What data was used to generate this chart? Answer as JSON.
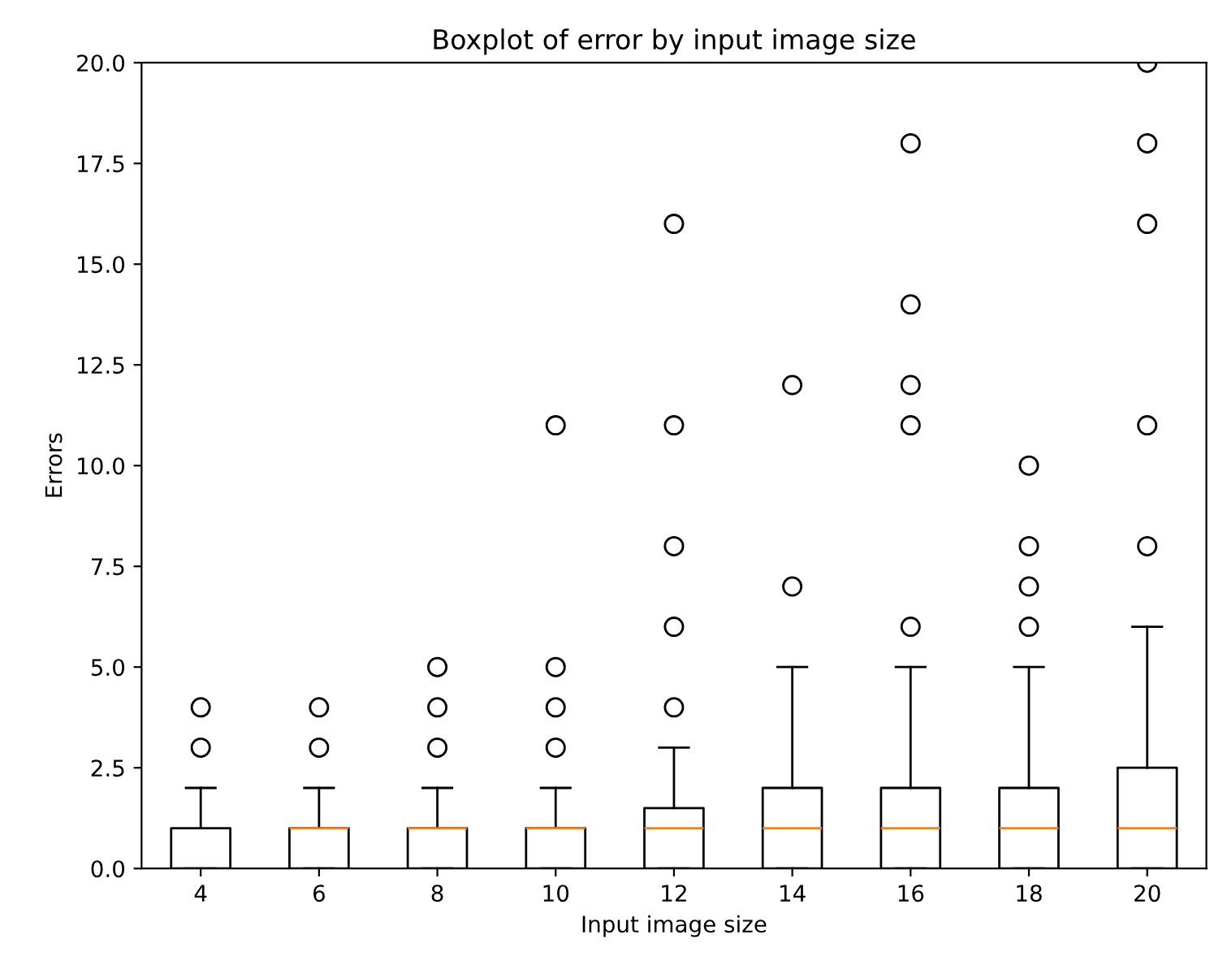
{
  "chart_data": {
    "type": "box",
    "title": "Boxplot of error by input image size",
    "xlabel": "Input image size",
    "ylabel": "Errors",
    "categories": [
      "4",
      "6",
      "8",
      "10",
      "12",
      "14",
      "16",
      "18",
      "20"
    ],
    "boxes": [
      {
        "low": 0,
        "q1": 0,
        "median": 0,
        "q3": 1,
        "high": 2,
        "outliers": [
          3,
          4
        ]
      },
      {
        "low": 0,
        "q1": 0,
        "median": 1,
        "q3": 1,
        "high": 2,
        "outliers": [
          3,
          4
        ]
      },
      {
        "low": 0,
        "q1": 0,
        "median": 1,
        "q3": 1,
        "high": 2,
        "outliers": [
          3,
          4,
          5
        ]
      },
      {
        "low": 0,
        "q1": 0,
        "median": 1,
        "q3": 1,
        "high": 2,
        "outliers": [
          3,
          4,
          5,
          11
        ]
      },
      {
        "low": 0,
        "q1": 0,
        "median": 1,
        "q3": 1.5,
        "high": 3,
        "outliers": [
          4,
          6,
          8,
          11,
          16
        ]
      },
      {
        "low": 0,
        "q1": 0,
        "median": 1,
        "q3": 2,
        "high": 5,
        "outliers": [
          7,
          12
        ]
      },
      {
        "low": 0,
        "q1": 0,
        "median": 1,
        "q3": 2,
        "high": 5,
        "outliers": [
          6,
          11,
          12,
          14,
          18
        ]
      },
      {
        "low": 0,
        "q1": 0,
        "median": 1,
        "q3": 2,
        "high": 5,
        "outliers": [
          6,
          7,
          8,
          10
        ]
      },
      {
        "low": 0,
        "q1": 0,
        "median": 1,
        "q3": 2.5,
        "high": 6,
        "outliers": [
          8,
          11,
          16,
          18,
          20
        ]
      }
    ],
    "ylim": [
      0,
      20
    ],
    "yticks": [
      {
        "value": 0,
        "label": "0.0"
      },
      {
        "value": 2.5,
        "label": "2.5"
      },
      {
        "value": 5,
        "label": "5.0"
      },
      {
        "value": 7.5,
        "label": "7.5"
      },
      {
        "value": 10,
        "label": "10.0"
      },
      {
        "value": 12.5,
        "label": "12.5"
      },
      {
        "value": 15,
        "label": "15.0"
      },
      {
        "value": 17.5,
        "label": "17.5"
      },
      {
        "value": 20,
        "label": "20.0"
      }
    ],
    "grid": false
  }
}
